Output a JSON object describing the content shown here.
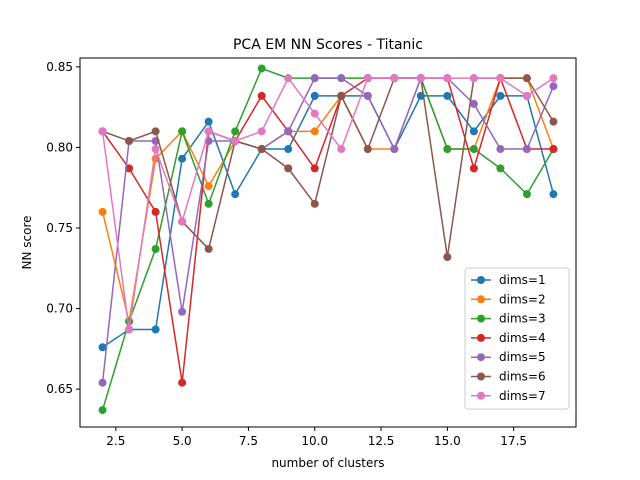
{
  "chart_data": {
    "type": "line",
    "title": "PCA EM NN Scores - Titanic",
    "xlabel": "number of clusters",
    "ylabel": "NN score",
    "xlim": [
      1.15,
      19.85
    ],
    "ylim": [
      0.6265,
      0.8555
    ],
    "xticks": [
      2.5,
      5.0,
      7.5,
      10.0,
      12.5,
      15.0,
      17.5
    ],
    "xtick_labels": [
      "2.5",
      "5.0",
      "7.5",
      "10.0",
      "12.5",
      "15.0",
      "17.5"
    ],
    "yticks": [
      0.65,
      0.7,
      0.75,
      0.8,
      0.85
    ],
    "ytick_labels": [
      "0.65",
      "0.70",
      "0.75",
      "0.80",
      "0.85"
    ],
    "grid": false,
    "legend_position": "lower-right",
    "x": [
      2,
      3,
      4,
      5,
      6,
      7,
      8,
      9,
      10,
      11,
      12,
      13,
      14,
      15,
      16,
      17,
      18,
      19
    ],
    "series": [
      {
        "name": "dims=1",
        "color": "#1f77b4",
        "values": [
          0.676,
          0.687,
          0.687,
          0.793,
          0.816,
          0.771,
          0.799,
          0.799,
          0.832,
          0.832,
          0.832,
          0.799,
          0.832,
          0.832,
          0.81,
          0.832,
          0.832,
          0.771
        ]
      },
      {
        "name": "dims=2",
        "color": "#ff7f0e",
        "values": [
          0.76,
          0.692,
          0.793,
          0.81,
          0.776,
          0.804,
          0.799,
          0.81,
          0.81,
          0.832,
          0.799,
          0.799,
          0.843,
          0.799,
          0.799,
          0.843,
          0.843,
          0.799
        ]
      },
      {
        "name": "dims=3",
        "color": "#2ca02c",
        "values": [
          0.637,
          0.692,
          0.737,
          0.81,
          0.765,
          0.81,
          0.849,
          0.843,
          0.843,
          0.843,
          0.843,
          0.843,
          0.843,
          0.799,
          0.799,
          0.787,
          0.771,
          0.799
        ]
      },
      {
        "name": "dims=4",
        "color": "#d62728",
        "values": [
          0.81,
          0.787,
          0.76,
          0.654,
          0.81,
          0.804,
          0.832,
          0.81,
          0.787,
          0.832,
          0.843,
          0.843,
          0.843,
          0.843,
          0.787,
          0.843,
          0.799,
          0.799
        ]
      },
      {
        "name": "dims=5",
        "color": "#9467bd",
        "values": [
          0.654,
          0.804,
          0.804,
          0.698,
          0.804,
          0.804,
          0.799,
          0.81,
          0.843,
          0.843,
          0.832,
          0.799,
          0.843,
          0.843,
          0.827,
          0.799,
          0.799,
          0.838
        ]
      },
      {
        "name": "dims=6",
        "color": "#8c564b",
        "values": [
          0.81,
          0.804,
          0.81,
          0.754,
          0.737,
          0.804,
          0.799,
          0.787,
          0.765,
          0.832,
          0.799,
          0.843,
          0.843,
          0.732,
          0.843,
          0.843,
          0.843,
          0.816
        ]
      },
      {
        "name": "dims=7",
        "color": "#e377c2",
        "values": [
          0.81,
          0.687,
          0.799,
          0.754,
          0.81,
          0.804,
          0.81,
          0.843,
          0.821,
          0.799,
          0.843,
          0.843,
          0.843,
          0.843,
          0.843,
          0.843,
          0.832,
          0.843
        ]
      }
    ]
  }
}
